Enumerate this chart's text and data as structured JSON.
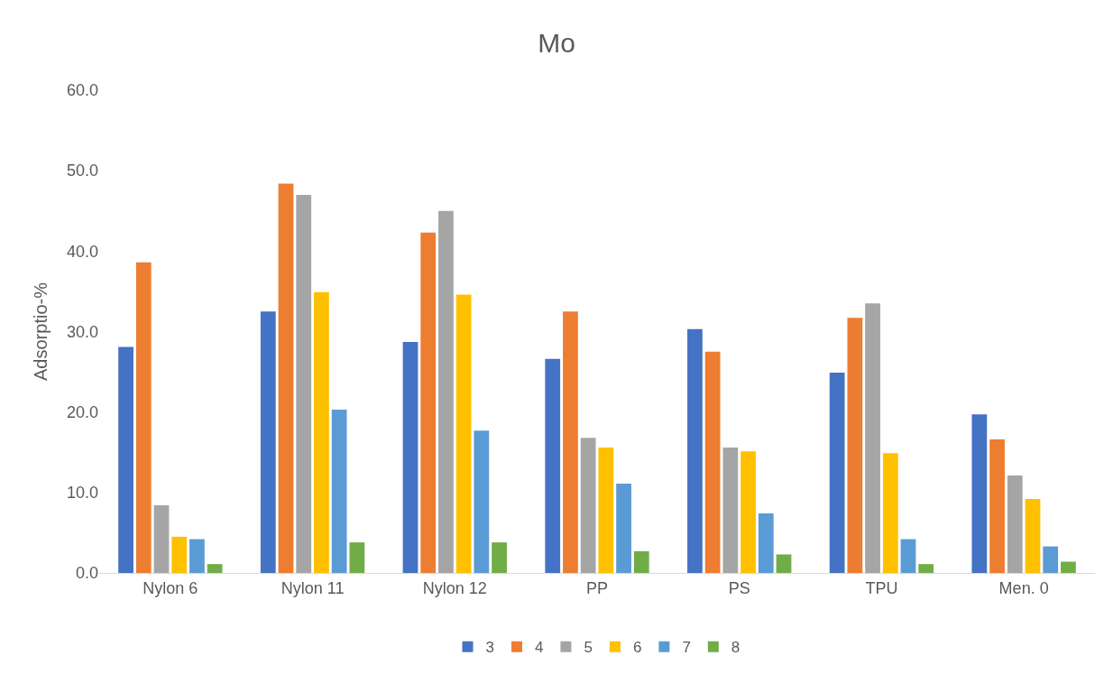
{
  "chart_data": {
    "type": "bar",
    "title": "Mo",
    "ylabel": "Adsorptio-%",
    "categories": [
      "Nylon 6",
      "Nylon 11",
      "Nylon 12",
      "PP",
      "PS",
      "TPU",
      "Men. 0"
    ],
    "series": [
      {
        "name": "3",
        "color": "#4472c4",
        "values": [
          28.1,
          32.5,
          28.7,
          26.6,
          30.3,
          24.9,
          19.7
        ]
      },
      {
        "name": "4",
        "color": "#ed7d31",
        "values": [
          38.6,
          48.4,
          42.3,
          32.5,
          27.5,
          31.7,
          16.6
        ]
      },
      {
        "name": "5",
        "color": "#a5a5a5",
        "values": [
          8.4,
          47.0,
          45.0,
          16.8,
          15.6,
          33.5,
          12.1
        ]
      },
      {
        "name": "6",
        "color": "#ffc000",
        "values": [
          4.5,
          34.9,
          34.6,
          15.6,
          15.1,
          14.9,
          9.2
        ]
      },
      {
        "name": "7",
        "color": "#5b9bd5",
        "values": [
          4.2,
          20.3,
          17.7,
          11.1,
          7.4,
          4.2,
          3.3
        ]
      },
      {
        "name": "8",
        "color": "#70ad47",
        "values": [
          1.1,
          3.8,
          3.8,
          2.7,
          2.3,
          1.1,
          1.4
        ]
      }
    ],
    "ylim": [
      0,
      60
    ],
    "yticks": [
      {
        "value": 0,
        "label": "0.0"
      },
      {
        "value": 10,
        "label": "10.0"
      },
      {
        "value": 20,
        "label": "20.0"
      },
      {
        "value": 30,
        "label": "30.0"
      },
      {
        "value": 40,
        "label": "40.0"
      },
      {
        "value": 50,
        "label": "50.0"
      },
      {
        "value": 60,
        "label": "60.0"
      }
    ],
    "legend": "bottom"
  }
}
